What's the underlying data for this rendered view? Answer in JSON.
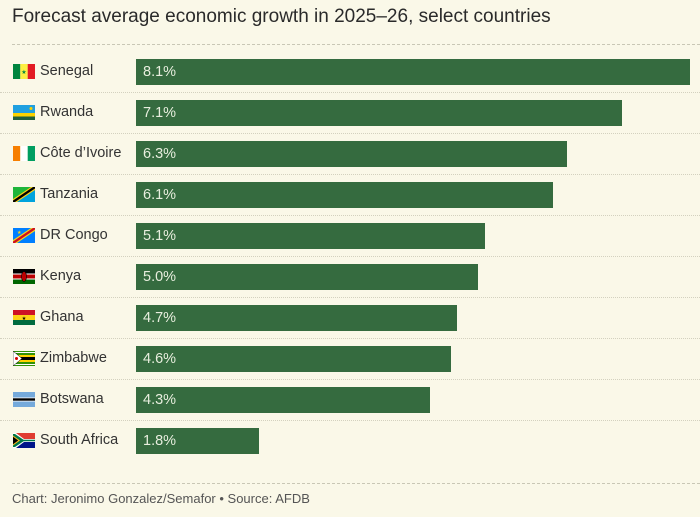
{
  "chart_data": {
    "type": "bar",
    "title": "Forecast average economic growth in 2025–26, select countries",
    "categories": [
      "Senegal",
      "Rwanda",
      "Côte d’Ivoire",
      "Tanzania",
      "DR Congo",
      "Kenya",
      "Ghana",
      "Zimbabwe",
      "Botswana",
      "South Africa"
    ],
    "values": [
      8.1,
      7.1,
      6.3,
      6.1,
      5.1,
      5.0,
      4.7,
      4.6,
      4.3,
      1.8
    ],
    "labels": [
      "8.1%",
      "7.1%",
      "6.3%",
      "6.1%",
      "5.1%",
      "5.0%",
      "4.7%",
      "4.6%",
      "4.3%",
      "1.8%"
    ],
    "xlim": [
      0,
      8.1
    ],
    "bar_color": "#356b3f"
  },
  "footer": "Chart: Jeronimo Gonzalez/Semafor • Source: AFDB"
}
